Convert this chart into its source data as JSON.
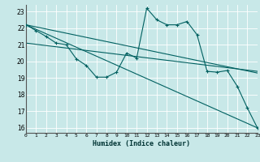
{
  "xlabel": "Humidex (Indice chaleur)",
  "bg_color": "#c8e8e8",
  "grid_color": "#ffffff",
  "line_color": "#006060",
  "xlim": [
    0,
    23
  ],
  "ylim": [
    15.7,
    23.4
  ],
  "xtick_labels": [
    "0",
    "1",
    "2",
    "3",
    "4",
    "5",
    "6",
    "7",
    "8",
    "9",
    "10",
    "11",
    "12",
    "13",
    "14",
    "15",
    "16",
    "17",
    "18",
    "19",
    "20",
    "21",
    "22",
    "23"
  ],
  "ytick_values": [
    16,
    17,
    18,
    19,
    20,
    21,
    22,
    23
  ],
  "series": [
    {
      "x": [
        0,
        1,
        2,
        3,
        4,
        5,
        6,
        7,
        8,
        9,
        10,
        11,
        12,
        13,
        14,
        15,
        16,
        17,
        18,
        19,
        20,
        21,
        22,
        23
      ],
      "y": [
        22.2,
        21.85,
        21.5,
        21.1,
        21.0,
        20.15,
        19.75,
        19.05,
        19.05,
        19.35,
        20.5,
        20.2,
        23.2,
        22.5,
        22.2,
        22.2,
        22.4,
        21.6,
        19.4,
        19.35,
        19.45,
        18.5,
        17.2,
        16.0
      ],
      "has_markers": true
    },
    {
      "x": [
        0,
        23
      ],
      "y": [
        22.2,
        16.0
      ],
      "has_markers": false
    },
    {
      "x": [
        0,
        23
      ],
      "y": [
        22.2,
        19.3
      ],
      "has_markers": false
    },
    {
      "x": [
        0,
        23
      ],
      "y": [
        21.1,
        19.4
      ],
      "has_markers": false
    }
  ]
}
